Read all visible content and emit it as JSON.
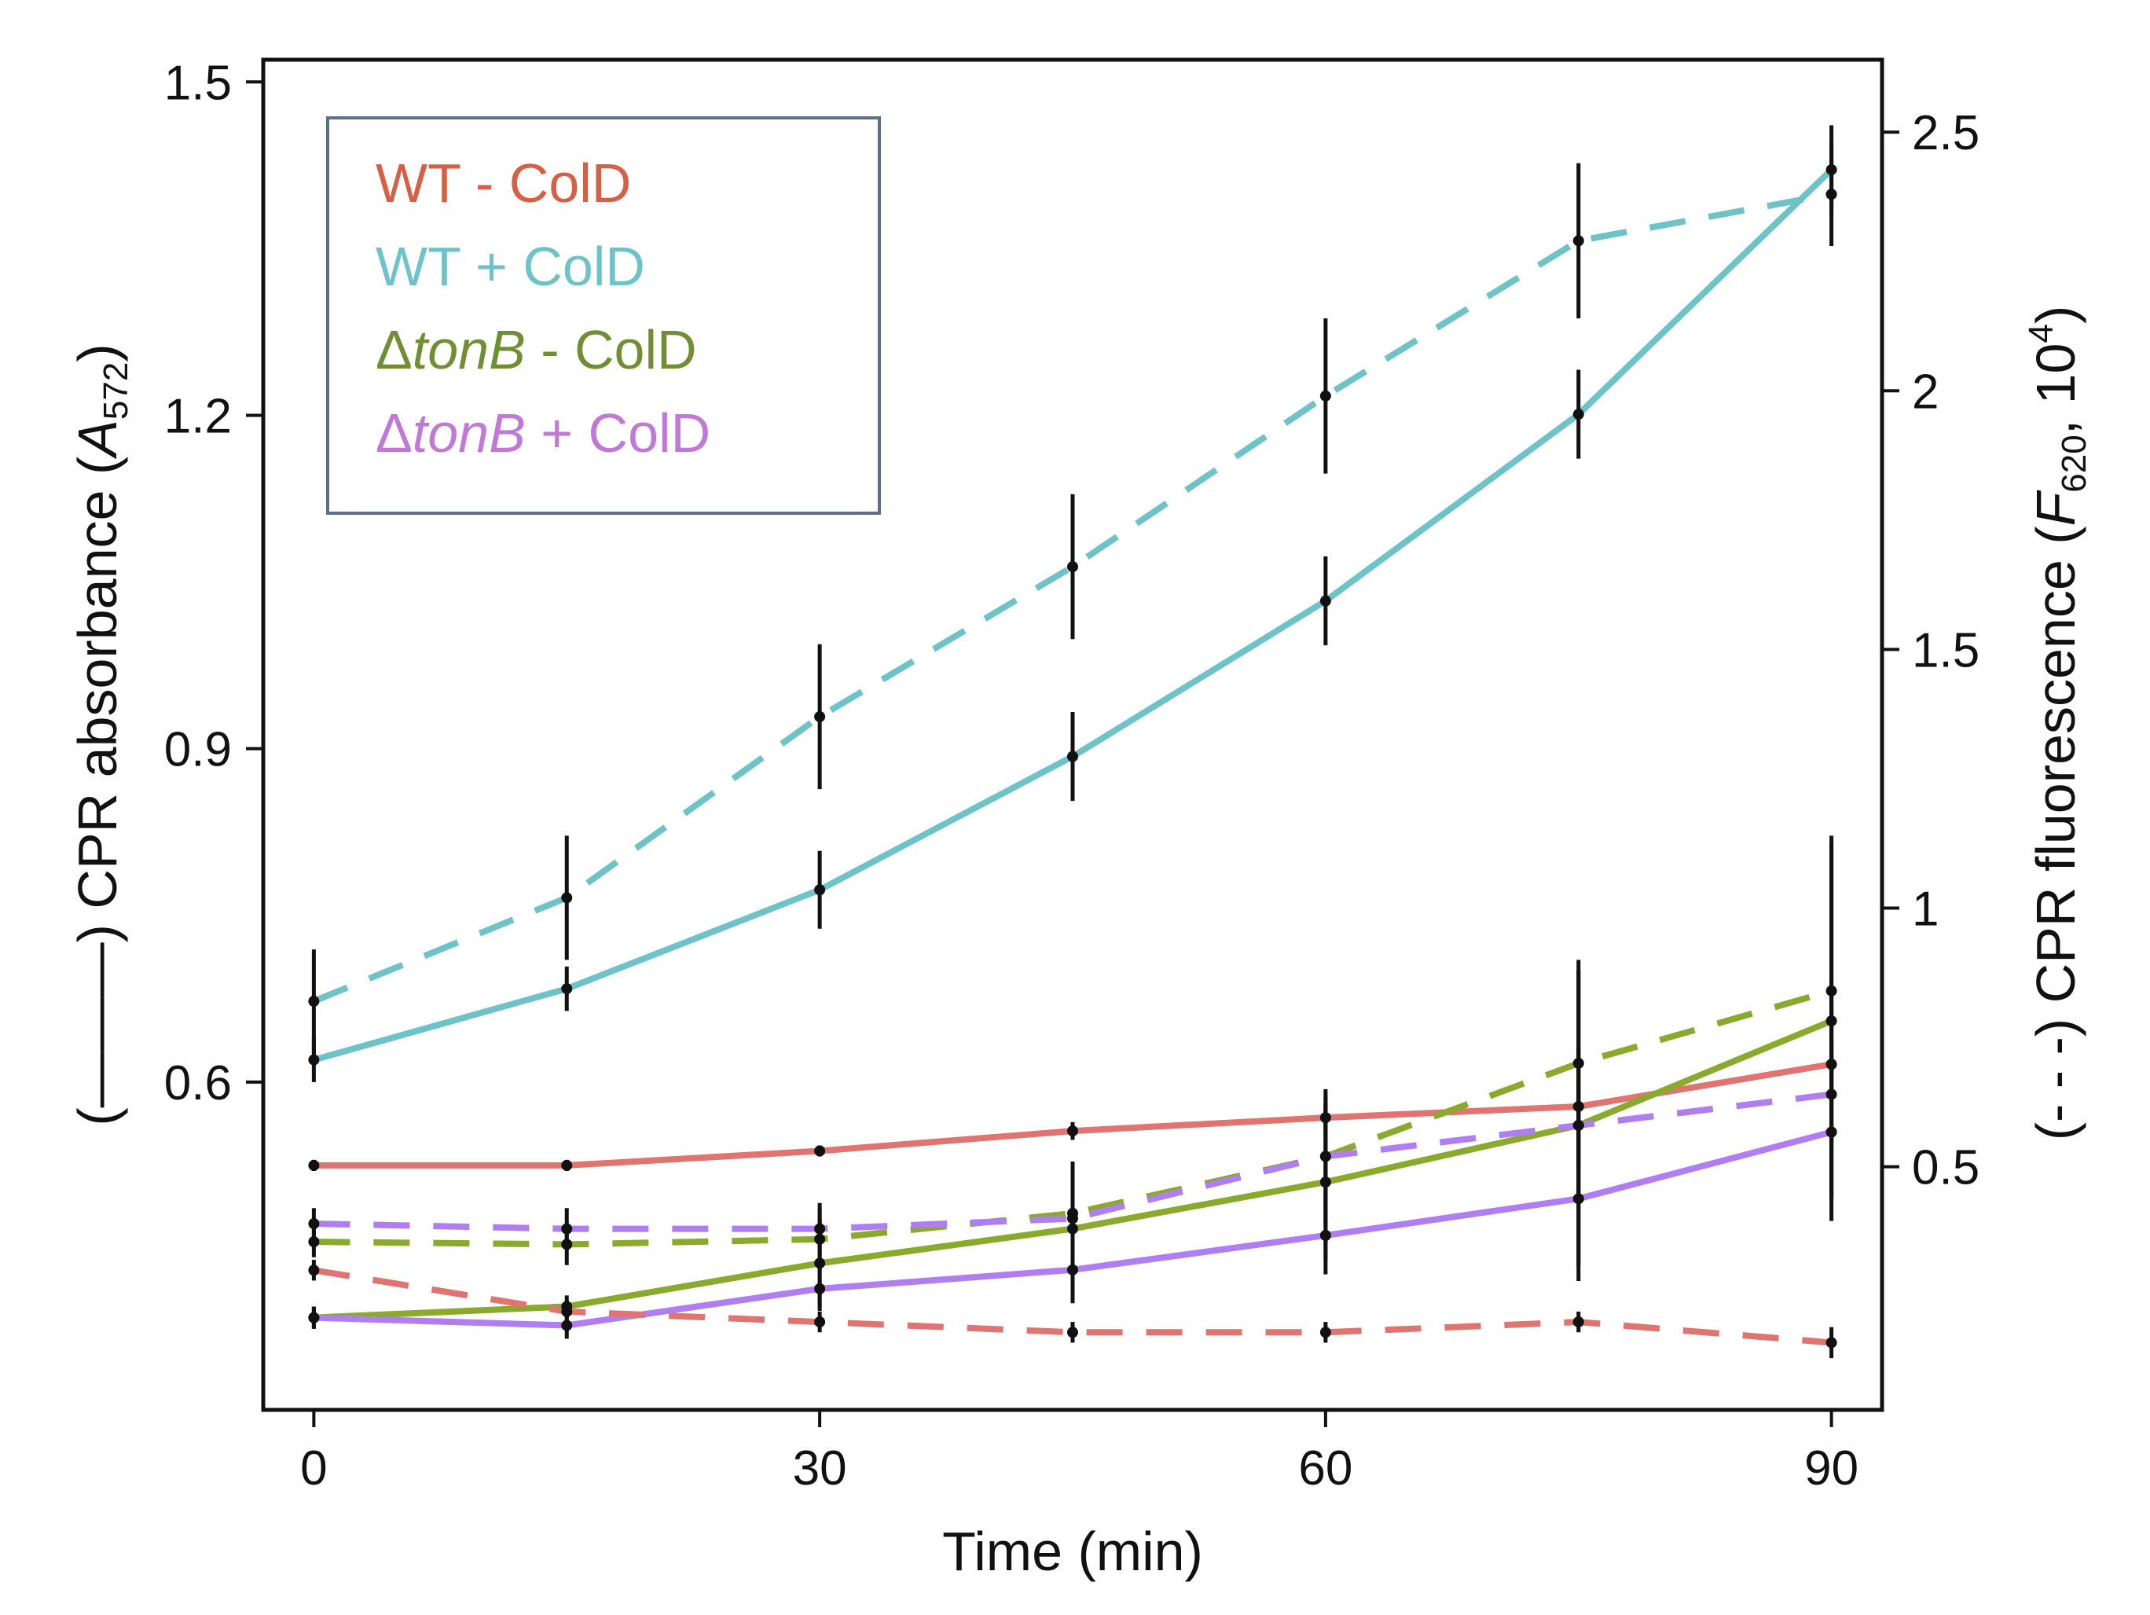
{
  "chart_data": {
    "type": "line",
    "xlabel": "Time (min)",
    "ylabel_left": {
      "prefix": "(",
      "suffix": ")  CPR absorbance (",
      "var": "A",
      "sub": "572",
      "close": ")"
    },
    "ylabel_right": {
      "prefix": "(- - -) CPR fluorescence (",
      "var": "F",
      "sub": "620",
      "mid": ",  10",
      "sup": "4",
      "close": ")"
    },
    "x": [
      0,
      15,
      30,
      45,
      60,
      75,
      90
    ],
    "x_ticks": [
      0,
      30,
      60,
      90
    ],
    "x_tick_labels": [
      "0",
      "30",
      "60",
      "90"
    ],
    "xlim": [
      -3,
      93
    ],
    "y_left_ticks": [
      0.6,
      0.9,
      1.2,
      1.5
    ],
    "y_left_tick_labels": [
      "0.6",
      "0.9",
      "1.2",
      "1.5"
    ],
    "y_left_lim": [
      0.305,
      1.52
    ],
    "y_right_ticks": [
      0.5,
      1,
      1.5,
      2,
      2.5
    ],
    "y_right_tick_labels": [
      "0.5",
      "1",
      "1.5",
      "2",
      "2.5"
    ],
    "y_right_lim": [
      0.03,
      2.64
    ],
    "legend_position": "top-left",
    "legend": [
      {
        "label": "WT - ColD",
        "color": "#d65f46",
        "italic_prefix": ""
      },
      {
        "label": "WT + ColD",
        "color": "#6ec3c8",
        "italic_prefix": ""
      },
      {
        "label": "tonB - ColD",
        "color": "#6f8f32",
        "italic_prefix": "Δ",
        "italic_part": "tonB",
        "rest": " - ColD"
      },
      {
        "label": "tonB + ColD",
        "color": "#c07ad6",
        "italic_prefix": "Δ",
        "italic_part": "tonB",
        "rest": " + ColD"
      }
    ],
    "series": [
      {
        "name": "WT - ColD",
        "style": "solid",
        "axis": "left",
        "color": "#e07470",
        "values": [
          0.525,
          0.525,
          0.538,
          0.556,
          0.568,
          0.578,
          0.616
        ],
        "errors": [
          0.005,
          0.005,
          0.005,
          0.008,
          0.02,
          0.02,
          0.02
        ]
      },
      {
        "name": "WT + ColD",
        "style": "solid",
        "axis": "left",
        "color": "#6ec3c8",
        "values": [
          0.62,
          0.684,
          0.773,
          0.893,
          1.033,
          1.201,
          1.421
        ],
        "errors": [
          0.02,
          0.02,
          0.035,
          0.04,
          0.04,
          0.04,
          0.04
        ]
      },
      {
        "name": "tonB - ColD",
        "style": "solid",
        "axis": "left",
        "color": "#8aaa2e",
        "values": [
          0.388,
          0.398,
          0.437,
          0.468,
          0.51,
          0.561,
          0.655
        ],
        "errors": [
          0.01,
          0.01,
          0.04,
          0.04,
          0.07,
          0.14,
          0.16
        ]
      },
      {
        "name": "tonB + ColD",
        "style": "solid",
        "axis": "left",
        "color": "#b07ef0",
        "values": [
          0.388,
          0.381,
          0.414,
          0.431,
          0.462,
          0.495,
          0.555
        ],
        "errors": [
          0.01,
          0.012,
          0.02,
          0.03,
          0.035,
          0.06,
          0.08
        ]
      },
      {
        "name": "WT - ColD",
        "style": "dashed",
        "axis": "right",
        "color": "#e07470",
        "values": [
          0.3,
          0.22,
          0.2,
          0.18,
          0.18,
          0.2,
          0.16
        ],
        "errors": [
          0.02,
          0.02,
          0.02,
          0.02,
          0.02,
          0.02,
          0.03
        ]
      },
      {
        "name": "WT + ColD",
        "style": "dashed",
        "axis": "right",
        "color": "#6ec3c8",
        "values": [
          0.82,
          1.02,
          1.37,
          1.66,
          1.99,
          2.29,
          2.38
        ],
        "errors": [
          0.1,
          0.12,
          0.14,
          0.14,
          0.15,
          0.15,
          0.1
        ]
      },
      {
        "name": "tonB - ColD",
        "style": "dashed",
        "axis": "right",
        "color": "#8aaa2e",
        "values": [
          0.355,
          0.35,
          0.36,
          0.41,
          0.52,
          0.7,
          0.84
        ],
        "errors": [
          0.03,
          0.04,
          0.06,
          0.1,
          0.13,
          0.2,
          0.3
        ]
      },
      {
        "name": "tonB + ColD",
        "style": "dashed",
        "axis": "right",
        "color": "#b07ef0",
        "values": [
          0.39,
          0.38,
          0.38,
          0.4,
          0.52,
          0.58,
          0.64
        ],
        "errors": [
          0.03,
          0.04,
          0.05,
          0.08,
          0.1,
          0.15,
          0.2
        ]
      }
    ]
  }
}
